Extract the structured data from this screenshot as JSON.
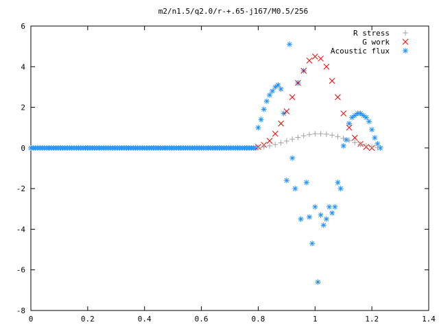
{
  "chart_data": {
    "type": "scatter",
    "title": "m2/n1.5/q2.0/r-+.65-j167/M0.5/256",
    "xlabel": "",
    "ylabel": "",
    "xlim": [
      0,
      1.4
    ],
    "ylim": [
      -8,
      6
    ],
    "grid": false,
    "legend_position": "top-right",
    "x_ticks": [
      "0",
      "0.2",
      "0.4",
      "0.6",
      "0.8",
      "1",
      "1.2",
      "1.4"
    ],
    "y_ticks": [
      "6",
      "4",
      "2",
      "0",
      "-2",
      "-4",
      "-6",
      "-8"
    ],
    "series": [
      {
        "name": "R stress",
        "marker": "plus",
        "color": "#a0a0a0",
        "x": [
          0.8,
          0.82,
          0.84,
          0.86,
          0.88,
          0.9,
          0.92,
          0.94,
          0.96,
          0.98,
          1.0,
          1.02,
          1.04,
          1.06,
          1.08,
          1.1,
          1.12,
          1.14,
          1.16,
          1.18,
          1.2,
          1.22
        ],
        "y": [
          0.02,
          0.05,
          0.1,
          0.17,
          0.25,
          0.34,
          0.43,
          0.52,
          0.6,
          0.66,
          0.7,
          0.7,
          0.68,
          0.63,
          0.56,
          0.47,
          0.37,
          0.27,
          0.18,
          0.1,
          0.05,
          0.02
        ]
      },
      {
        "name": "G work",
        "marker": "cross",
        "color": "#ff0000",
        "x": [
          0.8,
          0.82,
          0.84,
          0.86,
          0.88,
          0.9,
          0.92,
          0.94,
          0.96,
          0.98,
          1.0,
          1.02,
          1.04,
          1.06,
          1.08,
          1.1,
          1.12,
          1.14,
          1.16,
          1.18,
          1.2
        ],
        "y": [
          0.05,
          0.15,
          0.35,
          0.7,
          1.2,
          1.8,
          2.5,
          3.2,
          3.8,
          4.3,
          4.5,
          4.4,
          4.0,
          3.3,
          2.5,
          1.7,
          1.0,
          0.5,
          0.2,
          0.05,
          0.0
        ]
      },
      {
        "name": "Acoustic flux",
        "marker": "star",
        "color": "#1e90ff",
        "x": [
          0.8,
          0.81,
          0.82,
          0.83,
          0.84,
          0.85,
          0.86,
          0.87,
          0.88,
          0.89,
          0.9,
          0.91,
          0.92,
          0.93,
          0.94,
          0.95,
          0.96,
          0.97,
          0.98,
          0.99,
          1.0,
          1.01,
          1.02,
          1.03,
          1.04,
          1.05,
          1.06,
          1.07,
          1.08,
          1.09,
          1.1,
          1.11,
          1.12,
          1.13,
          1.14,
          1.15,
          1.16,
          1.17,
          1.18,
          1.19,
          1.2,
          1.21,
          1.22,
          1.23
        ],
        "y": [
          1.0,
          1.4,
          1.9,
          2.3,
          2.6,
          2.8,
          3.0,
          3.1,
          2.9,
          1.7,
          -1.6,
          5.1,
          -0.5,
          -2.0,
          3.2,
          -3.5,
          3.8,
          -1.7,
          -3.4,
          -4.7,
          -2.9,
          -6.6,
          -3.3,
          -3.8,
          -3.5,
          -2.9,
          -3.2,
          -2.9,
          -1.7,
          -2.0,
          0.1,
          0.4,
          1.2,
          1.5,
          1.6,
          1.7,
          1.7,
          1.6,
          1.5,
          1.3,
          0.9,
          0.5,
          0.2,
          0.0
        ],
        "zero_range": [
          0,
          0.8
        ]
      }
    ]
  }
}
